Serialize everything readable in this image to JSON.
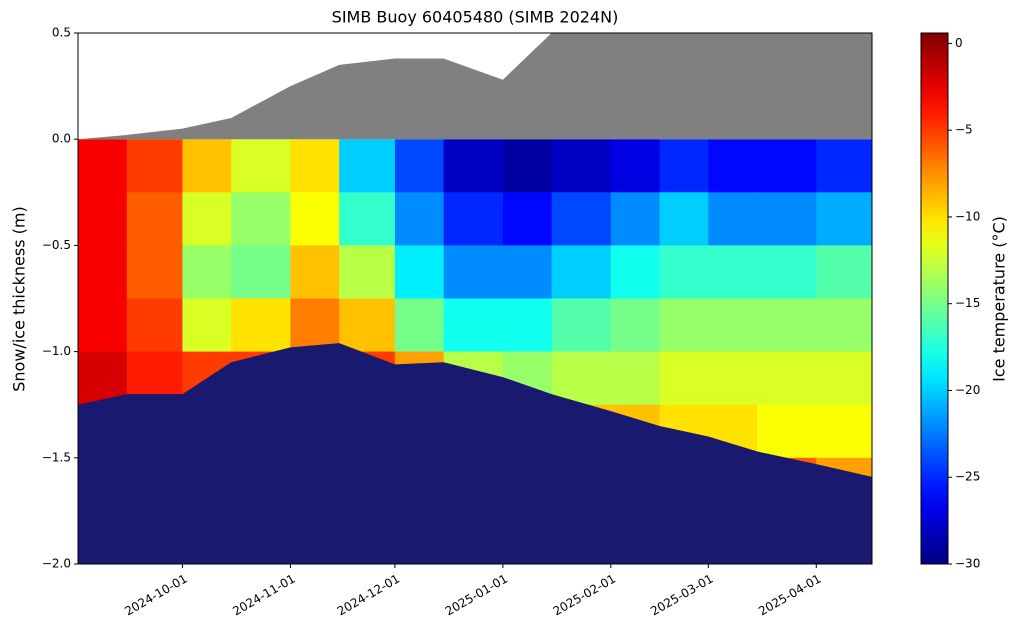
{
  "chart_data": {
    "type": "heatmap",
    "title": "SIMB Buoy 60405480 (SIMB 2024N)",
    "ylabel": "Snow/ice thickness (m)",
    "colorbar_label": "Ice temperature (°C)",
    "colormap": "jet",
    "xlim": [
      "2024-09-01",
      "2025-04-17"
    ],
    "xticks": [
      "2024-10-01",
      "2024-11-01",
      "2024-12-01",
      "2025-01-01",
      "2025-02-01",
      "2025-03-01",
      "2025-04-01"
    ],
    "ylim": [
      -2,
      0.5
    ],
    "yticks": [
      {
        "value": -2,
        "label": "−2.0"
      },
      {
        "value": -1.5,
        "label": "−1.5"
      },
      {
        "value": -1,
        "label": "−1.0"
      },
      {
        "value": -0.5,
        "label": "−0.5"
      },
      {
        "value": 0,
        "label": "0.0"
      },
      0.5
    ],
    "clim": [
      -30,
      0.6
    ],
    "cticks": [
      {
        "value": -30,
        "label": "−30"
      },
      {
        "value": -25,
        "label": "−25"
      },
      {
        "value": -20,
        "label": "−20"
      },
      {
        "value": -15,
        "label": "−15"
      },
      {
        "value": -10,
        "label": "−10"
      },
      {
        "value": -5,
        "label": "−5"
      },
      0
    ],
    "x": [
      "2024-09-01",
      "2024-09-15",
      "2024-10-01",
      "2024-10-15",
      "2024-11-01",
      "2024-11-15",
      "2024-12-01",
      "2024-12-15",
      "2025-01-01",
      "2025-01-15",
      "2025-02-01",
      "2025-02-15",
      "2025-03-01",
      "2025-03-15",
      "2025-04-01",
      "2025-04-17"
    ],
    "depths": [
      0,
      -0.25,
      -0.5,
      -0.75,
      -1,
      -1.25,
      -1.5
    ],
    "depth_step": 0.25,
    "z": [
      [
        -3,
        -5,
        -9,
        -12,
        -10,
        -20,
        -24,
        -28,
        -29,
        -28,
        -27,
        -25,
        -26,
        -26,
        -25
      ],
      [
        -3,
        -6,
        -12,
        -14,
        -11,
        -17,
        -22,
        -25,
        -26,
        -24,
        -22,
        -20,
        -22,
        -22,
        -21
      ],
      [
        -3,
        -6,
        -14,
        -15,
        -9,
        -13,
        -19,
        -22,
        -22,
        -20,
        -18,
        -17,
        -17,
        -17,
        -16
      ],
      [
        -3,
        -5,
        -12,
        -10,
        -7,
        -9,
        -15,
        -18,
        -18,
        -16,
        -15,
        -14,
        -14,
        -14,
        -14
      ],
      [
        -2,
        -4,
        -5,
        -5,
        -4,
        -5,
        -8,
        -13,
        -14,
        -13,
        -13,
        -12,
        -12,
        -12,
        -12
      ],
      [
        -2,
        -3,
        -3,
        -3,
        -3,
        -3,
        -3,
        -5,
        -8,
        -9,
        -9,
        -10,
        -10,
        -11,
        -11
      ],
      [
        -2,
        -2,
        -2,
        -2,
        -2,
        -2,
        -2,
        -2,
        -2,
        -3,
        -3,
        -4,
        -5,
        -6,
        -8
      ]
    ],
    "snow_height": {
      "color": "#808080",
      "values": [
        0,
        0.02,
        0.05,
        0.1,
        0.25,
        0.35,
        0.38,
        0.38,
        0.28,
        0.5,
        0.5,
        0.5,
        0.5,
        0.5,
        0.5,
        0.5
      ]
    },
    "ice_bottom": {
      "color": "#191970",
      "values": [
        -1.25,
        -1.2,
        -1.2,
        -1.05,
        -0.98,
        -0.96,
        -1.06,
        -1.05,
        -1.12,
        -1.2,
        -1.28,
        -1.35,
        -1.4,
        -1.47,
        -1.53,
        -1.59
      ]
    }
  }
}
